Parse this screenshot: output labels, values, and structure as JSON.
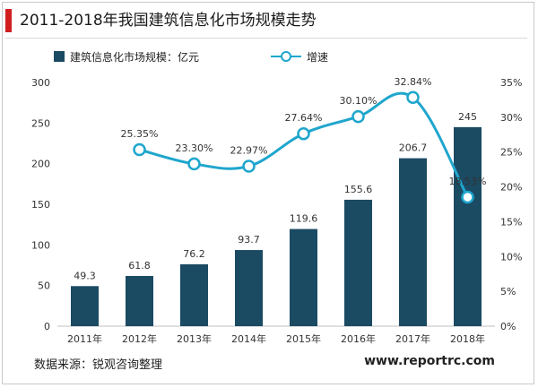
{
  "title": "2011-2018年我国建筑信息化市场规模走势",
  "source": "数据来源：锐观咨询整理",
  "website": "www.reportrc.com",
  "colors": {
    "bar": "#1b4a63",
    "line": "#1fa6cd",
    "accent": "#d11f1f"
  },
  "chart_data": {
    "type": "bar",
    "categories": [
      "2011年",
      "2012年",
      "2013年",
      "2014年",
      "2015年",
      "2016年",
      "2017年",
      "2018年"
    ],
    "series": [
      {
        "name": "建筑信息化市场规模：亿元",
        "type": "bar",
        "axis": "left",
        "values": [
          49.3,
          61.8,
          76.2,
          93.7,
          119.6,
          155.6,
          206.7,
          245
        ],
        "labels": [
          "49.3",
          "61.8",
          "76.2",
          "93.7",
          "119.6",
          "155.6",
          "206.7",
          "245"
        ]
      },
      {
        "name": "增速",
        "type": "line",
        "axis": "right",
        "values": [
          null,
          25.35,
          23.3,
          22.97,
          27.64,
          30.1,
          32.84,
          18.53
        ],
        "labels": [
          "",
          "25.35%",
          "23.30%",
          "22.97%",
          "27.64%",
          "30.10%",
          "32.84%",
          "18.53%"
        ]
      }
    ],
    "y_left": {
      "range": [
        0,
        300
      ],
      "ticks": [
        "0",
        "50",
        "100",
        "150",
        "200",
        "250",
        "300"
      ]
    },
    "y_right": {
      "range": [
        0,
        35
      ],
      "ticks": [
        "0%",
        "5%",
        "10%",
        "15%",
        "20%",
        "25%",
        "30%",
        "35%"
      ]
    },
    "legend_position": "top-left",
    "grid": false
  }
}
